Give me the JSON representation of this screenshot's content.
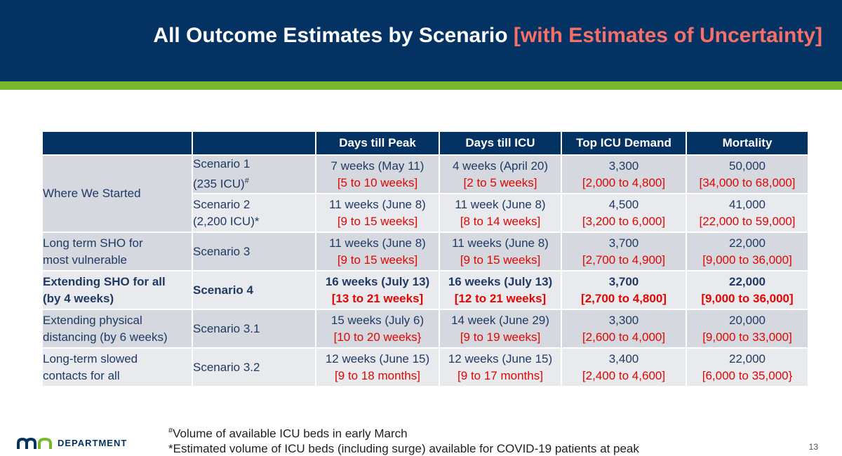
{
  "title": {
    "main": "All Outcome Estimates by Scenario",
    "accent": "[with Estimates of Uncertainty]"
  },
  "colors": {
    "header_bg": "#033263",
    "accent_bar": "#79b82e",
    "title_accent": "#f47069",
    "uncertainty_text": "#e10600"
  },
  "table": {
    "headers": [
      "",
      "",
      "Days till Peak",
      "Days till ICU",
      "Top ICU Demand",
      "Mortality"
    ],
    "rows": [
      {
        "scenario_line1": "Scenario 1",
        "scenario_line2": "(235 ICU)",
        "scenario_mark": "#",
        "peak": "7 weeks (May 11)",
        "peak_range": "[5 to 10 weeks]",
        "icu": "4 weeks (April 20)",
        "icu_range": "[2 to 5 weeks]",
        "demand": "3,300",
        "demand_range": "[2,000 to 4,800]",
        "mortality": "50,000",
        "mortality_range": "[34,000 to 68,000]"
      },
      {
        "scenario_line1": "Scenario 2",
        "scenario_line2": "(2,200 ICU)*",
        "peak": "11 weeks (June 8)",
        "peak_range": "[9 to 15 weeks]",
        "icu": "11 week (June 8)",
        "icu_range": "[8 to 14 weeks]",
        "demand": "4,500",
        "demand_range": "[3,200 to 6,000]",
        "mortality": "41,000",
        "mortality_range": "[22,000 to 59,000]"
      },
      {
        "label_line1": "Long term SHO for",
        "label_line2": "most vulnerable",
        "scenario": "Scenario 3",
        "peak": "11 weeks (June 8)",
        "peak_range": "[9 to 15 weeks]",
        "icu": "11 weeks (June 8)",
        "icu_range": "[9 to 15 weeks]",
        "demand": "3,700",
        "demand_range": "[2,700 to 4,900]",
        "mortality": "22,000",
        "mortality_range": "[9,000 to 36,000]"
      },
      {
        "label_line1": "Extending SHO for all",
        "label_line2": "(by 4 weeks)",
        "scenario": "Scenario 4",
        "peak": "16 weeks (July 13)",
        "peak_range": "[13 to 21 weeks]",
        "icu": "16 weeks (July 13)",
        "icu_range": "[12 to 21 weeks]",
        "demand": "3,700",
        "demand_range": "[2,700 to 4,800]",
        "mortality": "22,000",
        "mortality_range": "[9,000 to 36,000]"
      },
      {
        "label_line1": "Extending physical",
        "label_line2": "distancing (by 6 weeks)",
        "scenario": "Scenario 3.1",
        "peak": "15 weeks (July 6)",
        "peak_range": "[10 to 20 weeks}",
        "icu": "14 week (June 29)",
        "icu_range": "[9 to 19 weeks]",
        "demand": "3,300",
        "demand_range": "[2,600 to 4,000]",
        "mortality": "20,000",
        "mortality_range": "[9,000 to 33,000]"
      },
      {
        "label_line1": "Long-term slowed",
        "label_line2": "contacts for all",
        "scenario": "Scenario 3.2",
        "peak": "12 weeks (June 15)",
        "peak_range": "[9 to 18 months]",
        "icu": "12 weeks (June 15)",
        "icu_range": "[9 to 17 months]",
        "demand": "3,400",
        "demand_range": "[2,400 to 4,600]",
        "mortality": "22,000",
        "mortality_range": "[6,000 to 35,000}"
      }
    ],
    "group_label": "Where We Started"
  },
  "footnotes": {
    "mark": "#",
    "note1": "Volume of available ICU beds in early March",
    "note2": "*Estimated volume of ICU beds (including surge) available for COVID-19 patients at peak"
  },
  "logo": {
    "text": "DEPARTMENT"
  },
  "page_number": "13"
}
